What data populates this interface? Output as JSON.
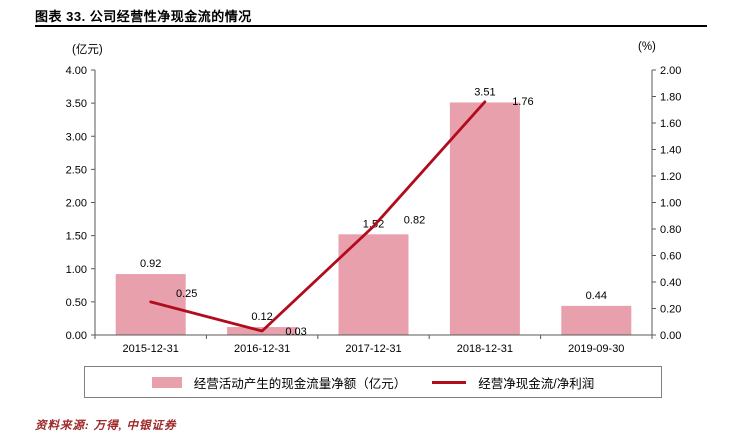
{
  "header": {
    "title": "图表 33. 公司经营性净现金流的情况"
  },
  "axis_units": {
    "left": "(亿元)",
    "right": "(%)"
  },
  "chart_data": {
    "type": "bar",
    "subtype": "bar+line combo, dual axis",
    "title": "图表 33. 公司经营性净现金流的情况",
    "categories": [
      "2015-12-31",
      "2016-12-31",
      "2017-12-31",
      "2018-12-31",
      "2019-09-30"
    ],
    "series": [
      {
        "name": "经营活动产生的现金流量净额（亿元）",
        "type": "bar",
        "axis": "left",
        "color": "#e8a1ac",
        "values": [
          0.92,
          0.12,
          1.52,
          3.51,
          0.44
        ]
      },
      {
        "name": "经营净现金流/净利润",
        "type": "line",
        "axis": "right",
        "color": "#b10c1e",
        "values": [
          0.25,
          0.03,
          0.82,
          1.76,
          null
        ]
      }
    ],
    "left_axis": {
      "unit": "(亿元)",
      "min": 0,
      "max": 4,
      "step": 0.5,
      "decimals": 2
    },
    "right_axis": {
      "unit": "(%)",
      "min": 0,
      "max": 2,
      "step": 0.2,
      "decimals": 2
    },
    "grid": false,
    "legend_position": "bottom"
  },
  "source": {
    "text": "资料来源: 万得, 中银证券"
  }
}
